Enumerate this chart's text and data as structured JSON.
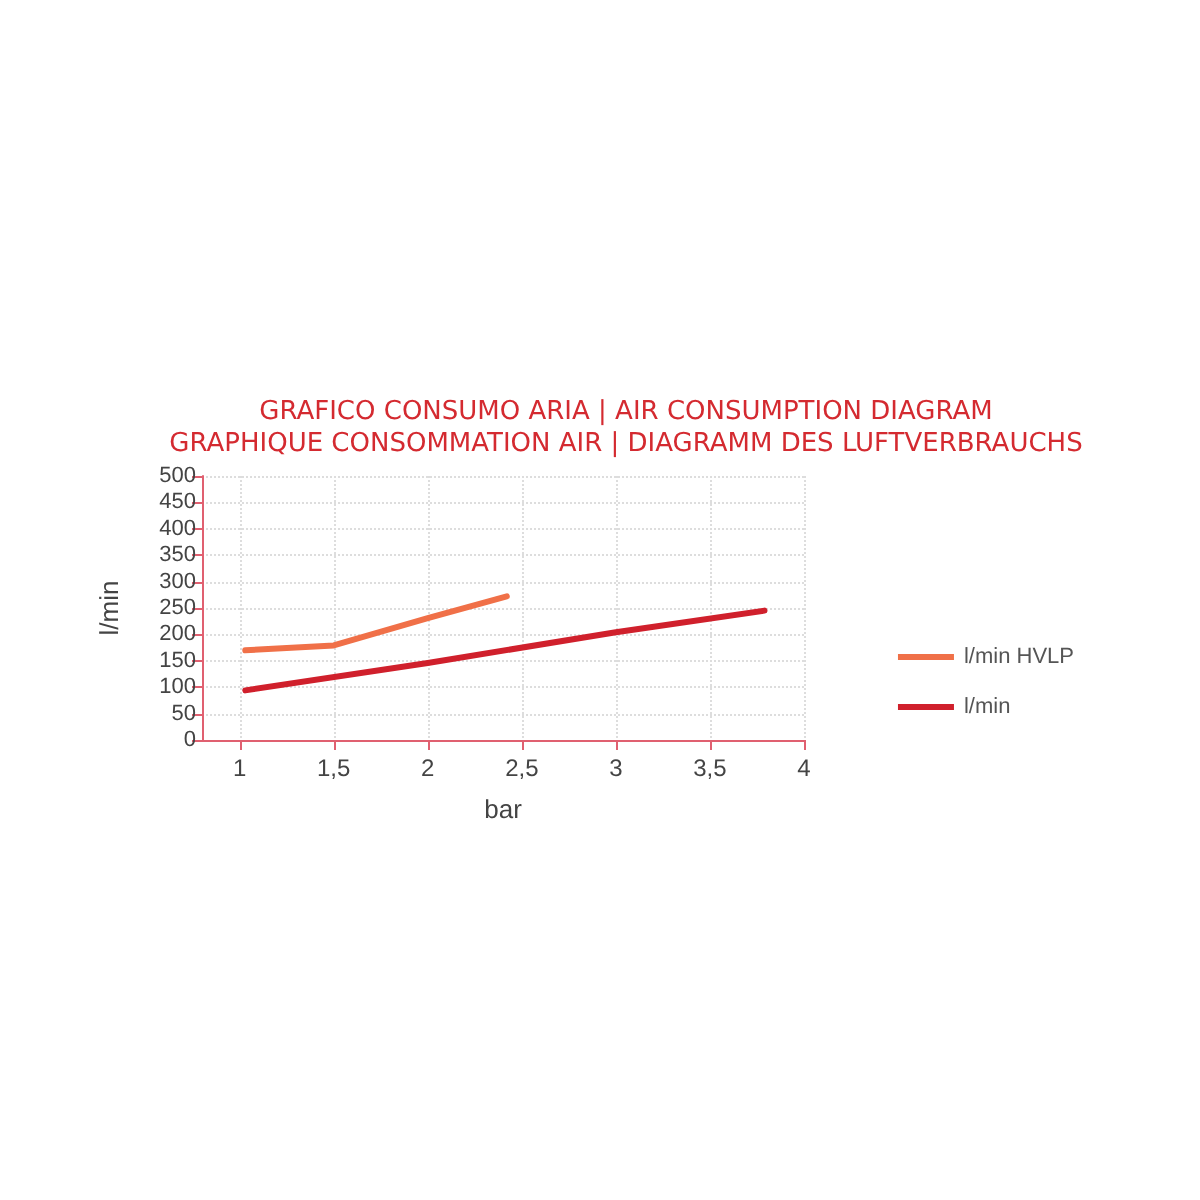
{
  "chart_data": {
    "type": "line",
    "title": "GRAFICO CONSUMO ARIA | AIR CONSUMPTION DIAGRAM\nGRAPHIQUE CONSOMMATION AIR | DIAGRAMM DES LUFTVERBRAUCHS",
    "xlabel": "bar",
    "ylabel": "l/min",
    "series": [
      {
        "name": "l/min HVLP",
        "color": "#f07048",
        "x": [
          1.03,
          1.5,
          2,
          2.42
        ],
        "values": [
          170,
          179,
          231,
          272
        ]
      },
      {
        "name": "l/min",
        "color": "#d0202c",
        "x": [
          1.03,
          2,
          3,
          3.79
        ],
        "values": [
          94,
          146,
          204,
          245
        ]
      }
    ],
    "xlim": [
      0.8,
      4
    ],
    "xticks": [
      1,
      {
        "value": 1.5,
        "label": "1,5"
      },
      2,
      {
        "value": 2.5,
        "label": "2,5"
      },
      3,
      {
        "value": 3.5,
        "label": "3,5"
      },
      4
    ],
    "ylim": [
      0,
      500
    ],
    "yticks": [
      0,
      50,
      100,
      150,
      200,
      250,
      300,
      350,
      400,
      450,
      500
    ],
    "grid": true,
    "legend": "right",
    "marker": "none",
    "line_style": "solid"
  }
}
